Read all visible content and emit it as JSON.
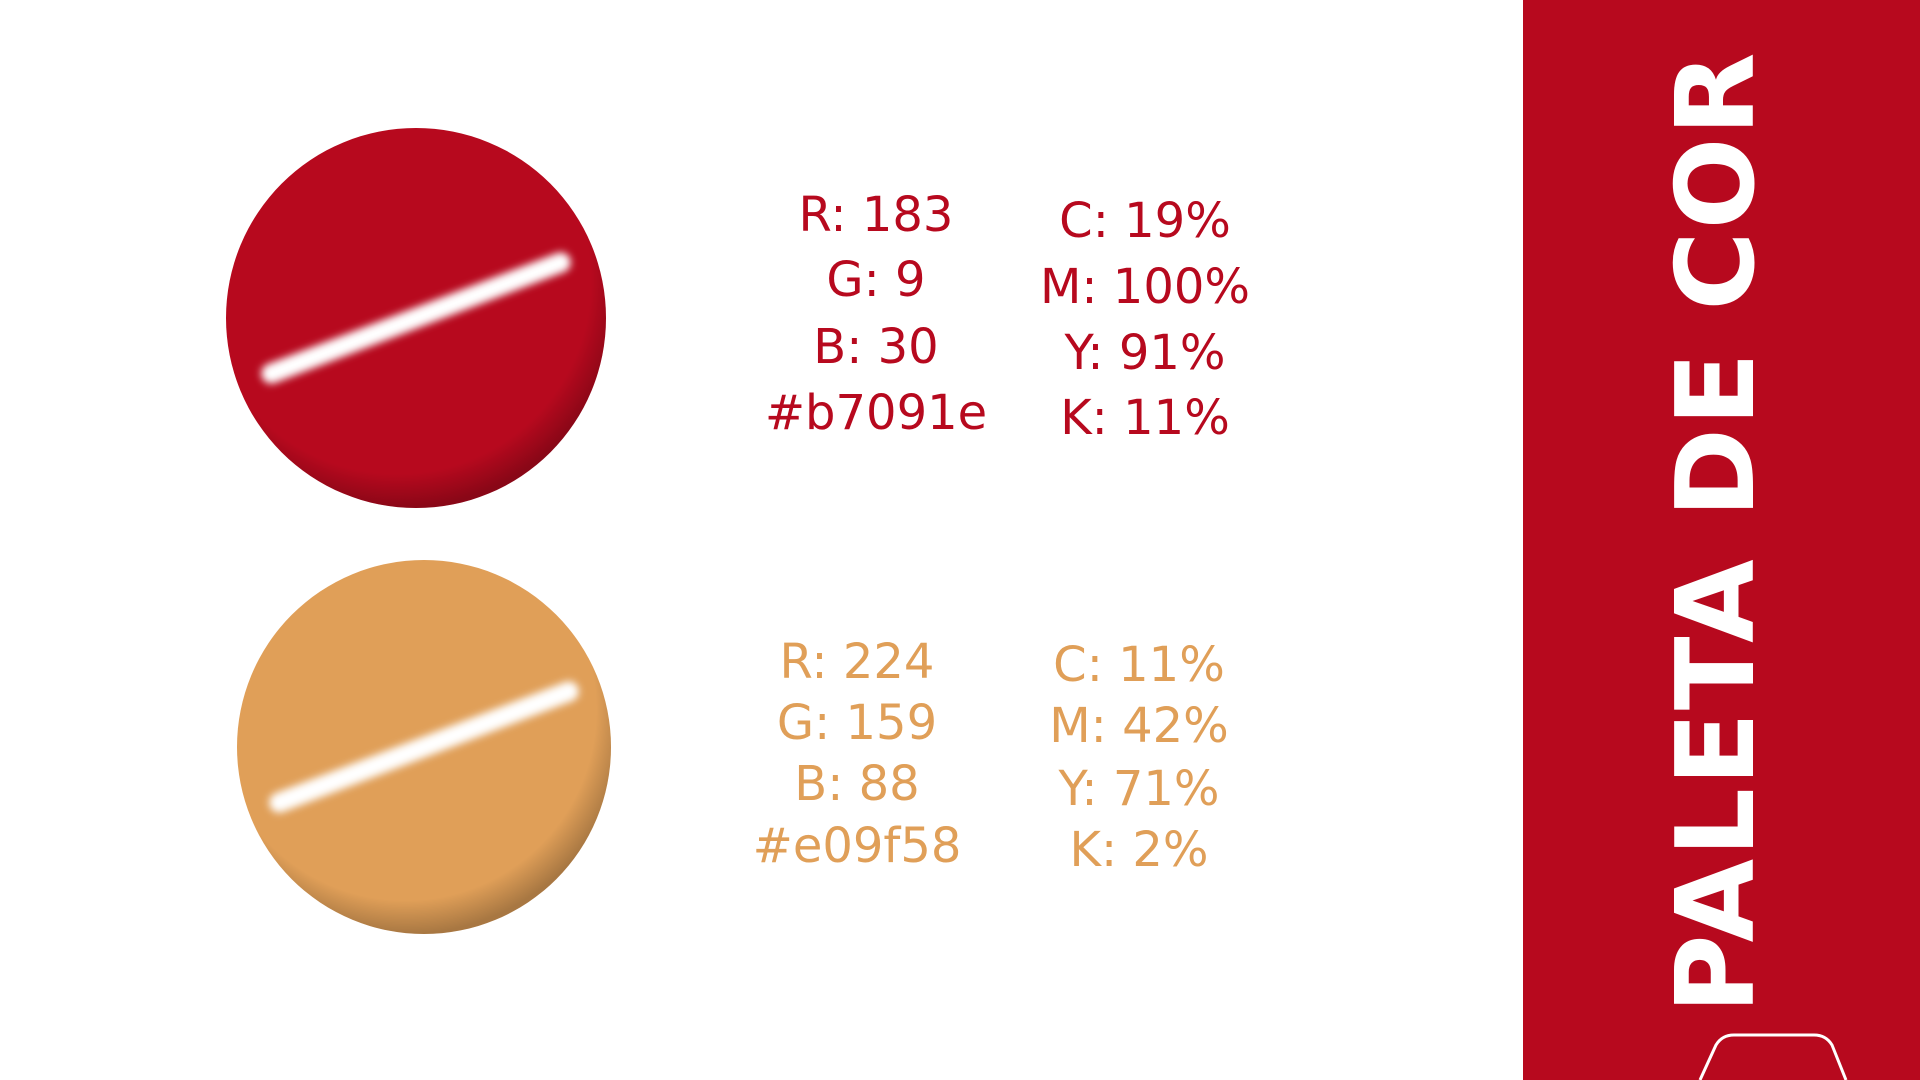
{
  "title": "PALETA DE COR",
  "swatches": [
    {
      "rgb": [
        "R: 183",
        "G: 9",
        "B: 30"
      ],
      "hex": "#b7091e",
      "cmyk": [
        "C: 19%",
        "M: 100%",
        "Y: 91%",
        "K: 11%"
      ]
    },
    {
      "rgb": [
        "R: 224",
        "G: 159",
        "B: 88"
      ],
      "hex": "#e09f58",
      "cmyk": [
        "C: 11%",
        "M: 42%",
        "Y: 71%",
        "K: 2%"
      ]
    }
  ]
}
